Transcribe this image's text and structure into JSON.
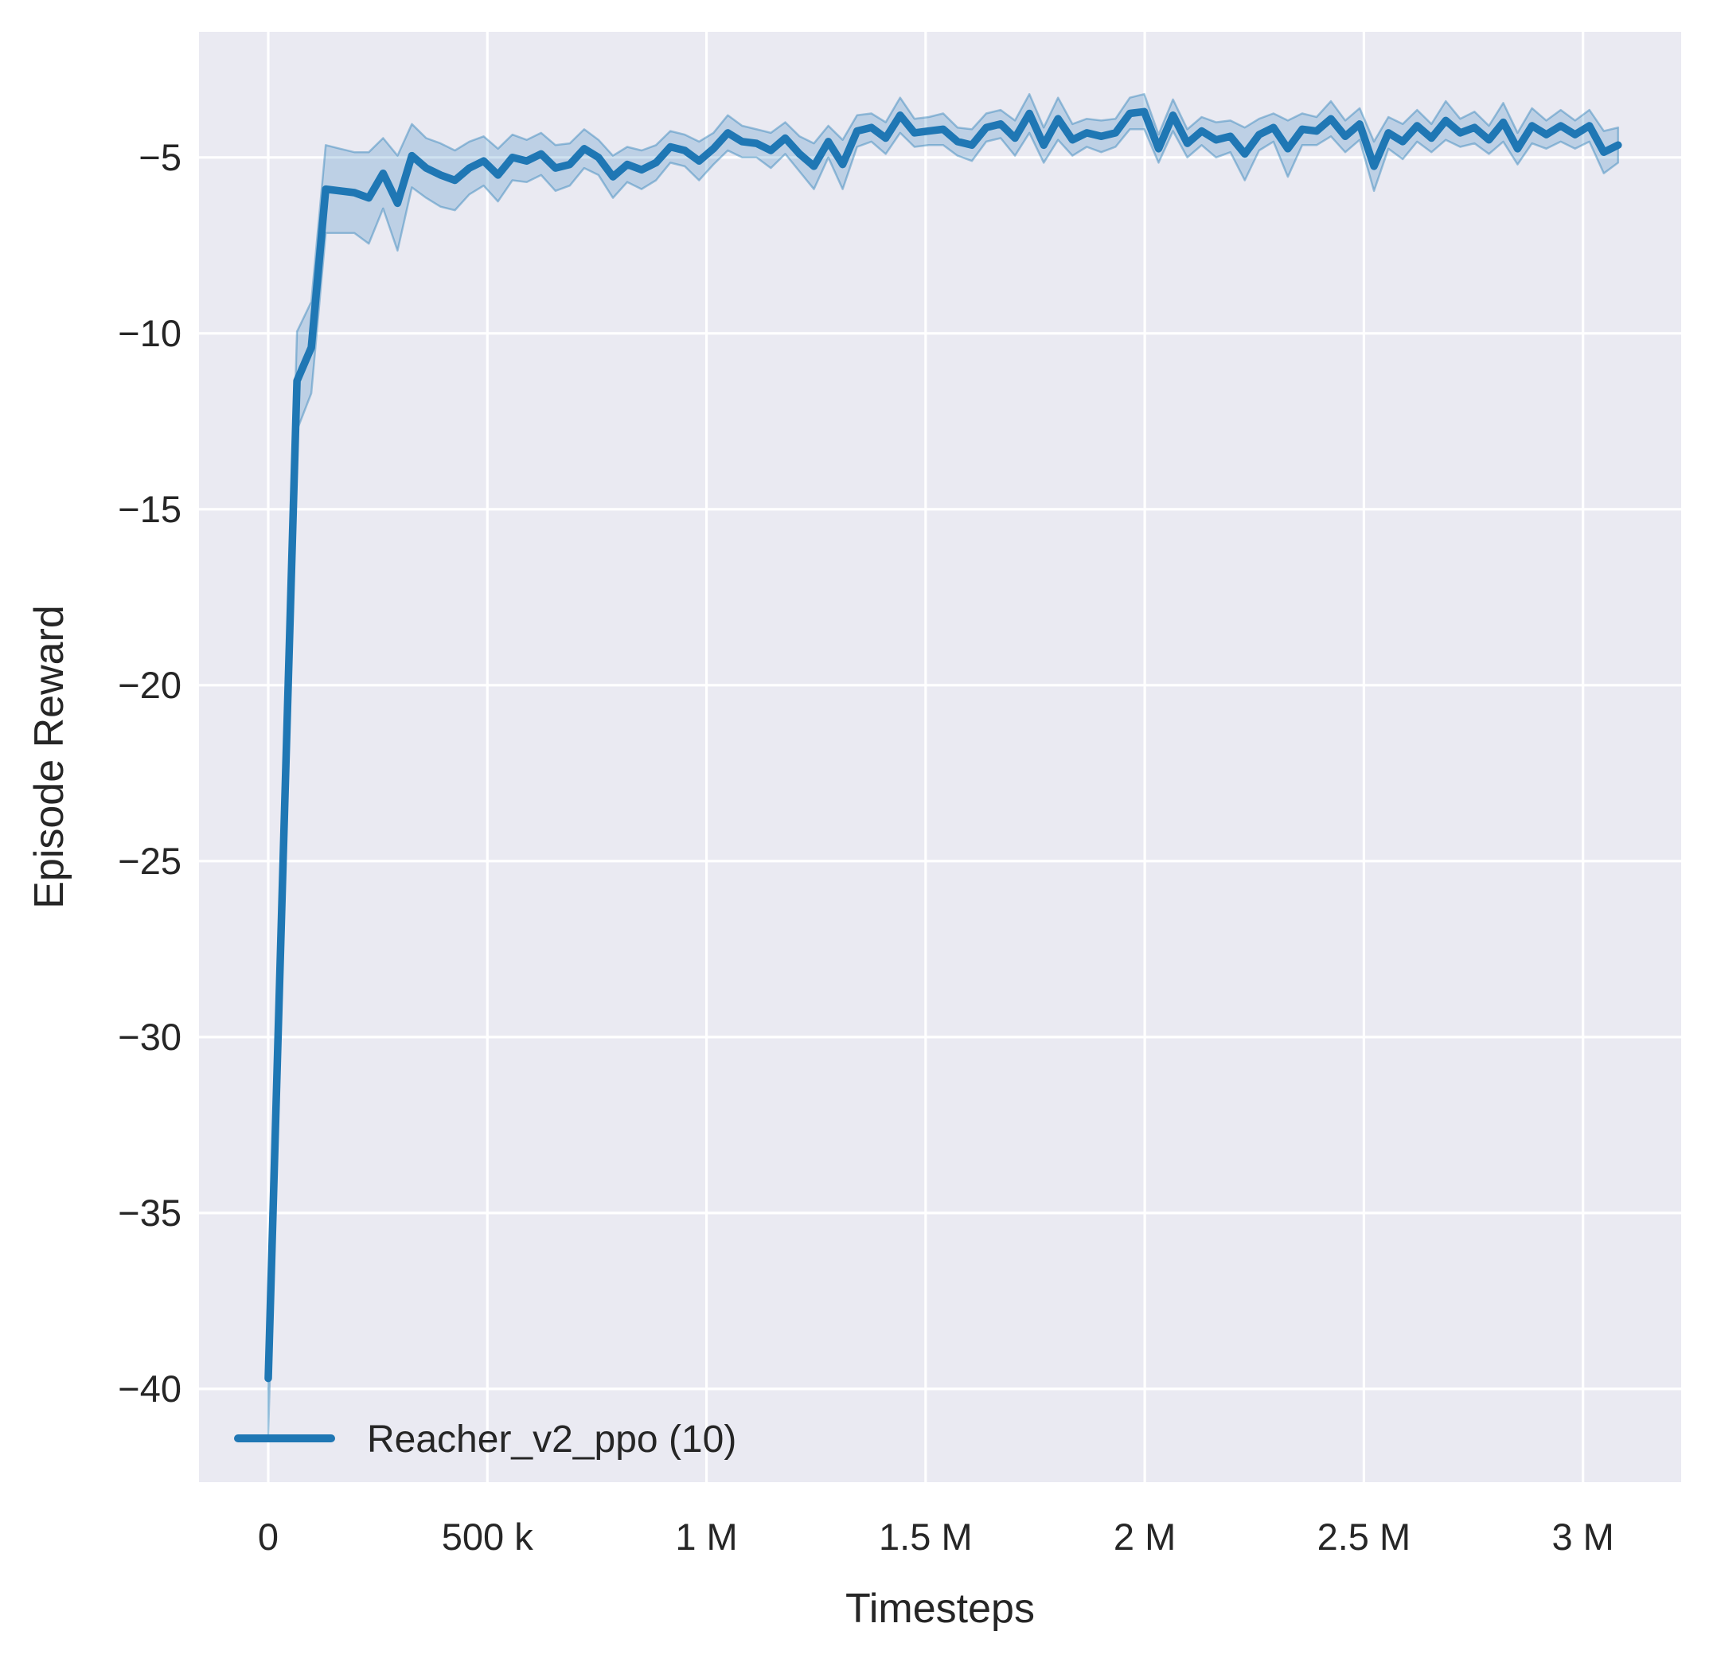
{
  "figure": {
    "background": "#ffffff",
    "axes_background": "#eaeaf2",
    "grid_color": "#ffffff",
    "text_color": "#262626",
    "line_color": "#1f77b4",
    "band_fill_opacity": 0.22,
    "band_edge_opacity": 0.4
  },
  "chart_data": {
    "type": "line",
    "title": "",
    "xlabel": "Timesteps",
    "ylabel": "Episode Reward",
    "grid": true,
    "xlim": [
      -158000,
      3224000
    ],
    "ylim": [
      -42.65,
      -1.43
    ],
    "x_ticks": [
      {
        "value": 0,
        "label": "0"
      },
      {
        "value": 500000,
        "label": "500 k"
      },
      {
        "value": 1000000,
        "label": "1 M"
      },
      {
        "value": 1500000,
        "label": "1.5 M"
      },
      {
        "value": 2000000,
        "label": "2 M"
      },
      {
        "value": 2500000,
        "label": "2.5 M"
      },
      {
        "value": 3000000,
        "label": "3 M"
      }
    ],
    "y_ticks": [
      {
        "value": -5,
        "label": "−5"
      },
      {
        "value": -10,
        "label": "−10"
      },
      {
        "value": -15,
        "label": "−15"
      },
      {
        "value": -20,
        "label": "−20"
      },
      {
        "value": -25,
        "label": "−25"
      },
      {
        "value": -30,
        "label": "−30"
      },
      {
        "value": -35,
        "label": "−35"
      },
      {
        "value": -40,
        "label": "−40"
      }
    ],
    "legend": {
      "position": "lower-left",
      "entries": [
        {
          "label": "Reacher_v2_ppo (10)",
          "color": "#1f77b4"
        }
      ]
    },
    "series": [
      {
        "name": "Reacher_v2_ppo (10)",
        "x_start": 0,
        "x_step": 32768,
        "values": [
          -39.7,
          -25.5,
          -11.35,
          -10.4,
          -5.9,
          -5.95,
          -6.0,
          -6.15,
          -5.45,
          -6.3,
          -4.95,
          -5.3,
          -5.5,
          -5.65,
          -5.3,
          -5.1,
          -5.5,
          -5.0,
          -5.1,
          -4.9,
          -5.3,
          -5.2,
          -4.75,
          -5.0,
          -5.55,
          -5.2,
          -5.35,
          -5.15,
          -4.7,
          -4.8,
          -5.1,
          -4.75,
          -4.3,
          -4.55,
          -4.6,
          -4.8,
          -4.45,
          -4.9,
          -5.25,
          -4.55,
          -5.2,
          -4.25,
          -4.15,
          -4.45,
          -3.8,
          -4.3,
          -4.25,
          -4.2,
          -4.55,
          -4.65,
          -4.15,
          -4.05,
          -4.45,
          -3.75,
          -4.65,
          -3.9,
          -4.5,
          -4.3,
          -4.4,
          -4.3,
          -3.75,
          -3.7,
          -4.75,
          -3.8,
          -4.6,
          -4.25,
          -4.5,
          -4.4,
          -4.9,
          -4.35,
          -4.15,
          -4.75,
          -4.2,
          -4.25,
          -3.9,
          -4.4,
          -4.05,
          -5.25,
          -4.3,
          -4.55,
          -4.1,
          -4.45,
          -3.95,
          -4.3,
          -4.15,
          -4.5,
          -4.0,
          -4.75,
          -4.1,
          -4.35,
          -4.1,
          -4.35,
          -4.1,
          -4.85,
          -4.65
        ],
        "band_halfwidth": [
          1.6,
          1.5,
          1.4,
          1.3,
          1.25,
          1.2,
          1.15,
          1.3,
          1.0,
          1.35,
          0.9,
          0.85,
          0.9,
          0.85,
          0.75,
          0.7,
          0.75,
          0.65,
          0.6,
          0.6,
          0.65,
          0.6,
          0.55,
          0.5,
          0.6,
          0.5,
          0.55,
          0.5,
          0.45,
          0.45,
          0.55,
          0.45,
          0.5,
          0.45,
          0.4,
          0.5,
          0.45,
          0.5,
          0.65,
          0.45,
          0.7,
          0.45,
          0.4,
          0.45,
          0.5,
          0.4,
          0.4,
          0.45,
          0.4,
          0.45,
          0.4,
          0.4,
          0.5,
          0.55,
          0.5,
          0.6,
          0.45,
          0.4,
          0.45,
          0.4,
          0.45,
          0.5,
          0.4,
          0.45,
          0.4,
          0.4,
          0.5,
          0.45,
          0.75,
          0.45,
          0.4,
          0.8,
          0.45,
          0.4,
          0.5,
          0.45,
          0.45,
          0.7,
          0.45,
          0.5,
          0.45,
          0.4,
          0.55,
          0.4,
          0.45,
          0.4,
          0.55,
          0.45,
          0.5,
          0.4,
          0.45,
          0.4,
          0.45,
          0.6,
          0.5
        ]
      }
    ]
  }
}
